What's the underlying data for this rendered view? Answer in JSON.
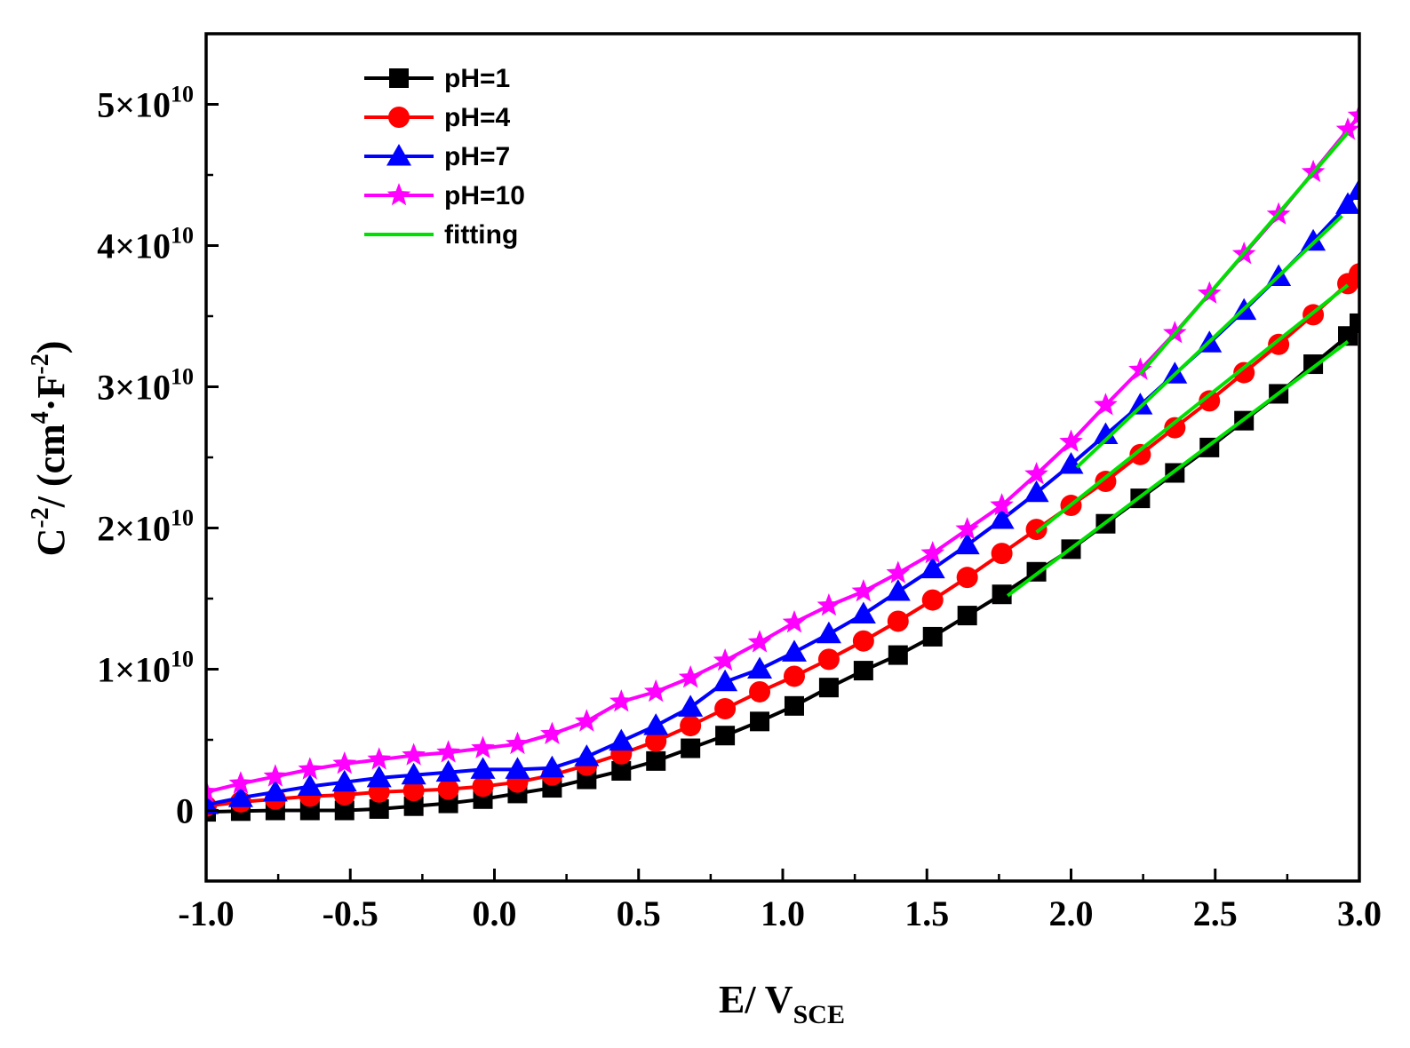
{
  "chart_data": {
    "type": "line",
    "title": "",
    "xlabel": "E/ V",
    "xlabel_sub": "SCE",
    "ylabel": "C",
    "ylabel_sup": "-2",
    "ylabel_rest": "/ (cm",
    "ylabel_sup2": "4",
    "ylabel_dot": "·F",
    "ylabel_sup3": "-2",
    "ylabel_end": ")",
    "xlim": [
      -1.0,
      3.0
    ],
    "ylim": [
      -5000000000.0,
      55000000000.0
    ],
    "xticks": [
      -1.0,
      -0.5,
      0.0,
      0.5,
      1.0,
      1.5,
      2.0,
      2.5,
      3.0
    ],
    "xtick_labels": [
      "-1.0",
      "-0.5",
      "0.0",
      "0.5",
      "1.0",
      "1.5",
      "2.0",
      "2.5",
      "3.0"
    ],
    "yticks": [
      0,
      10000000000.0,
      20000000000.0,
      30000000000.0,
      40000000000.0,
      50000000000.0
    ],
    "ytick_labels": [
      {
        "mant": "0",
        "exp": ""
      },
      {
        "mant": "1×10",
        "exp": "10"
      },
      {
        "mant": "2×10",
        "exp": "10"
      },
      {
        "mant": "3×10",
        "exp": "10"
      },
      {
        "mant": "4×10",
        "exp": "10"
      },
      {
        "mant": "5×10",
        "exp": "10"
      }
    ],
    "legend_position": "top-left",
    "x": [
      -1.0,
      -0.88,
      -0.76,
      -0.64,
      -0.52,
      -0.4,
      -0.28,
      -0.16,
      -0.04,
      0.08,
      0.2,
      0.32,
      0.44,
      0.56,
      0.68,
      0.8,
      0.92,
      1.04,
      1.16,
      1.28,
      1.4,
      1.52,
      1.64,
      1.76,
      1.88,
      2.0,
      2.12,
      2.24,
      2.36,
      2.48,
      2.6,
      2.72,
      2.84,
      2.96,
      3.0
    ],
    "series": [
      {
        "name": "pH=1",
        "color": "#000000",
        "marker": "square",
        "values": [
          -100000000.0,
          -50000000.0,
          0.0,
          0.0,
          0.0,
          100000000.0,
          300000000.0,
          500000000.0,
          800000000.0,
          1200000000.0,
          1600000000.0,
          2200000000.0,
          2800000000.0,
          3500000000.0,
          4400000000.0,
          5300000000.0,
          6300000000.0,
          7400000000.0,
          8700000000.0,
          9900000000.0,
          11000000000.0,
          12300000000.0,
          13800000000.0,
          15300000000.0,
          16900000000.0,
          18500000000.0,
          20300000000.0,
          22100000000.0,
          23900000000.0,
          25700000000.0,
          27600000000.0,
          29500000000.0,
          31600000000.0,
          33600000000.0,
          34500000000.0
        ]
      },
      {
        "name": "pH=4",
        "color": "#ff0000",
        "marker": "circle",
        "values": [
          300000000.0,
          600000000.0,
          800000000.0,
          1000000000.0,
          1100000000.0,
          1300000000.0,
          1400000000.0,
          1500000000.0,
          1700000000.0,
          2000000000.0,
          2500000000.0,
          3200000000.0,
          4000000000.0,
          4900000000.0,
          6000000000.0,
          7200000000.0,
          8400000000.0,
          9500000000.0,
          10700000000.0,
          12000000000.0,
          13400000000.0,
          14900000000.0,
          16500000000.0,
          18200000000.0,
          19900000000.0,
          21600000000.0,
          23300000000.0,
          25200000000.0,
          27100000000.0,
          29000000000.0,
          31000000000.0,
          33000000000.0,
          35100000000.0,
          37300000000.0,
          38000000000.0
        ]
      },
      {
        "name": "pH=7",
        "color": "#0000ff",
        "marker": "triangle",
        "values": [
          400000000.0,
          900000000.0,
          1300000000.0,
          1700000000.0,
          2000000000.0,
          2300000000.0,
          2500000000.0,
          2700000000.0,
          2900000000.0,
          2900000000.0,
          3000000000.0,
          3800000000.0,
          4900000000.0,
          6000000000.0,
          7300000000.0,
          9100000000.0,
          10000000000.0,
          11200000000.0,
          12500000000.0,
          13900000000.0,
          15500000000.0,
          17100000000.0,
          18800000000.0,
          20600000000.0,
          22500000000.0,
          24500000000.0,
          26600000000.0,
          28700000000.0,
          30900000000.0,
          33100000000.0,
          35400000000.0,
          37800000000.0,
          40300000000.0,
          42900000000.0,
          43900000000.0
        ]
      },
      {
        "name": "pH=10",
        "color": "#ff00ff",
        "marker": "star",
        "values": [
          1300000000.0,
          1900000000.0,
          2400000000.0,
          2900000000.0,
          3300000000.0,
          3600000000.0,
          3900000000.0,
          4100000000.0,
          4400000000.0,
          4700000000.0,
          5400000000.0,
          6300000000.0,
          7700000000.0,
          8400000000.0,
          9400000000.0,
          10600000000.0,
          11900000000.0,
          13300000000.0,
          14500000000.0,
          15500000000.0,
          16800000000.0,
          18200000000.0,
          19900000000.0,
          21600000000.0,
          23800000000.0,
          26100000000.0,
          28700000000.0,
          31200000000.0,
          33800000000.0,
          36600000000.0,
          39400000000.0,
          42200000000.0,
          45200000000.0,
          48200000000.0,
          49200000000.0
        ]
      }
    ],
    "fitting": {
      "name": "fitting",
      "color": "#00e000",
      "lines": [
        {
          "x": [
            1.78,
            2.96
          ],
          "y": [
            15200000000.0,
            33200000000.0
          ]
        },
        {
          "x": [
            1.88,
            2.96
          ],
          "y": [
            19700000000.0,
            37200000000.0
          ]
        },
        {
          "x": [
            2.02,
            2.94
          ],
          "y": [
            24300000000.0,
            42100000000.0
          ]
        },
        {
          "x": [
            2.24,
            2.96
          ],
          "y": [
            30900000000.0,
            48000000000.0
          ]
        }
      ]
    }
  }
}
